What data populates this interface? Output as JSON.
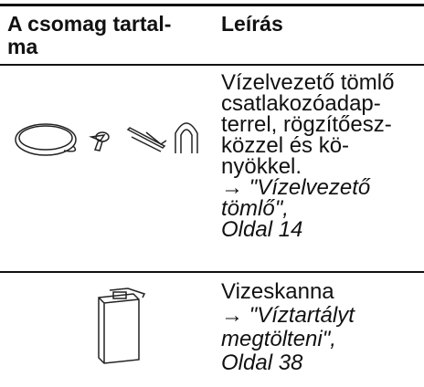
{
  "header": {
    "columns": [
      [
        "A csomag tartal-",
        "ma"
      ],
      "Leírás"
    ]
  },
  "table": {
    "rows": [
      {
        "description": [
          "Vízelvezető tömlő",
          "csatlakozóadap-",
          "terrel, rögzítőesz-",
          "közzel és kö-",
          "nyökkel."
        ],
        "reference": [
          "→ \"Vízelvezető",
          "tömlő\",",
          "Oldal 14"
        ]
      },
      {
        "description": [
          "Vizeskanna"
        ],
        "reference": [
          "→ \"Víztartályt",
          "megtölteni\",",
          "Oldal 38"
        ]
      }
    ]
  }
}
